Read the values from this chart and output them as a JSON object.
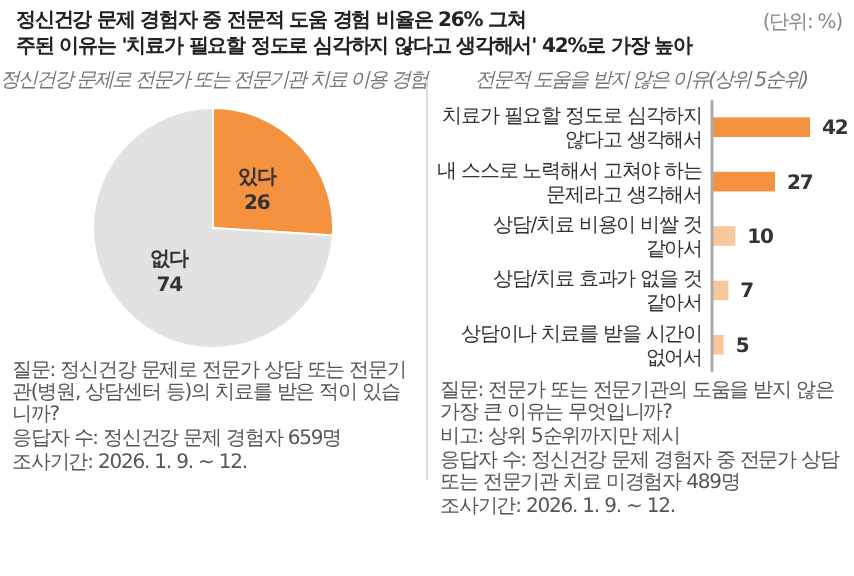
{
  "chart_data": [
    {
      "type": "other",
      "title": "정신건강 문제 경험자 중 전문적 도움 경험 비율은 26% 그쳐",
      "subtitle": "주된 이유는 '치료가 필요할 정도로 심각하지 않다고 생각해서' 42%로 가장 높아",
      "annotations": [
        "(단위: %)"
      ]
    },
    {
      "type": "pie",
      "title": "정신건강 문제로 전문가 또는 전문기관 치료 이용 경험",
      "categories": [
        "있다",
        "없다"
      ],
      "values": [
        26,
        74
      ],
      "colors": [
        "#f4923f",
        "#e2e2e2"
      ],
      "data_labels": true,
      "annotations": [
        "질문: 정신건강 문제로 전문가 상담 또는 전문기관(병원, 상담센터 등)의 치료를 받은 적이 있습니까?",
        "응답자 수: 정신건강 문제 경험자 659명",
        "조사기간: 2026. 1. 9. ~ 12."
      ]
    },
    {
      "type": "bar",
      "orientation": "horizontal",
      "title": "전문적 도움을 받지 않은 이유(상위 5순위)",
      "categories": [
        "치료가 필요할 정도로 심각하지 않다고 생각해서",
        "내 스스로 노력해서 고쳐야 하는 문제라고 생각해서",
        "상담/치료 비용이 비쌀 것 같아서",
        "상담/치료 효과가 없을 것 같아서",
        "상담이나 치료를 받을 시간이 없어서"
      ],
      "values": [
        42,
        27,
        10,
        7,
        5
      ],
      "colors": [
        "#f4923f",
        "#f4923f",
        "#f9c79c",
        "#f9c79c",
        "#f9c79c"
      ],
      "data_labels": true,
      "annotations": [
        "질문: 전문가 또는 전문기관의 도움을 받지 않은 가장 큰 이유는 무엇입니까?",
        "비고: 상위 5순위까지만 제시",
        "응답자 수: 정신건강 문제 경험자 중 전문가 상담 또는 전문기관 치료 미경험자 489명",
        "조사기간: 2026. 1. 9. ~ 12."
      ]
    }
  ]
}
